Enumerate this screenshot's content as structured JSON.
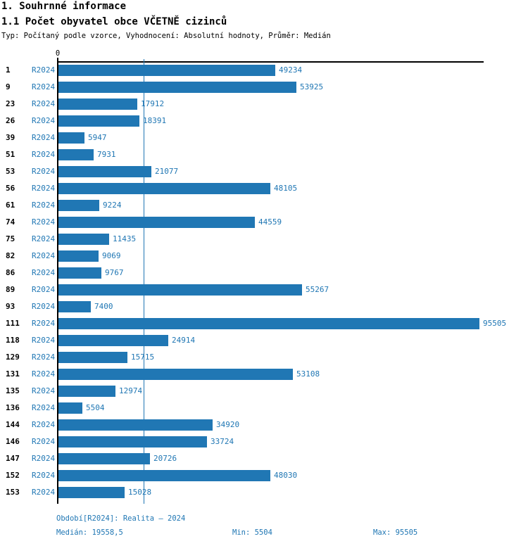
{
  "header": {
    "title": "1. Souhrnné informace",
    "subtitle": "1.1 Počet obyvatel obce VČETNĚ cizinců",
    "meta": "Typ: Počítaný podle vzorce, Vyhodnocení: Absolutní hodnoty, Průměr: Medián"
  },
  "chart_data": {
    "type": "bar",
    "orientation": "horizontal",
    "title": "1.1 Počet obyvatel obce VČETNĚ cizinců",
    "origin_label": "0",
    "series_label": "R2024",
    "categories": [
      "1",
      "9",
      "23",
      "26",
      "39",
      "51",
      "53",
      "56",
      "61",
      "74",
      "75",
      "82",
      "86",
      "89",
      "93",
      "111",
      "118",
      "129",
      "131",
      "135",
      "136",
      "144",
      "146",
      "147",
      "152",
      "153"
    ],
    "values": [
      49234,
      53925,
      17912,
      18391,
      5947,
      7931,
      21077,
      48105,
      9224,
      44559,
      11435,
      9069,
      9767,
      55267,
      7400,
      95505,
      24914,
      15715,
      53108,
      12974,
      5504,
      34920,
      33724,
      20726,
      48030,
      15028
    ],
    "median_line": 19558.5,
    "min": 5504,
    "max": 95505,
    "xlim": [
      0,
      95505
    ],
    "grid": false,
    "legend_position": "none",
    "value_labels": "right-of-bar"
  },
  "footer": {
    "period": "Období[R2024]: Realita – 2024",
    "median": "Medián: 19558,5",
    "min": "Min: 5504",
    "max": "Max: 95505"
  },
  "colors": {
    "bar": "#2077b4",
    "accent_text": "#2077b4",
    "axis": "#000000",
    "background": "#ffffff"
  }
}
